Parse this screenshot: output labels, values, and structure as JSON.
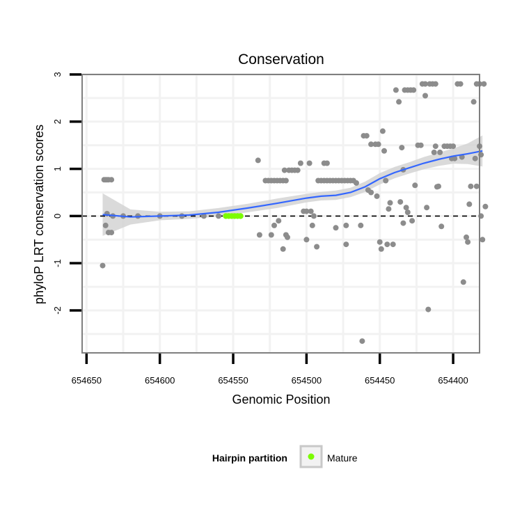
{
  "chart_data": {
    "type": "scatter",
    "title": "Conservation",
    "xlabel": "Genomic Position",
    "ylabel": "phyloP LRT conservation scores",
    "xlim": [
      654653,
      654382
    ],
    "ylim": [
      -2.9,
      3.0
    ],
    "x_reversed": true,
    "x_ticks": [
      654650,
      654600,
      654550,
      654500,
      654450,
      654400
    ],
    "x_tick_labels": [
      "654650",
      "654600",
      "654550",
      "654500",
      "654450",
      "654400"
    ],
    "y_ticks": [
      -2,
      -1,
      0,
      1,
      2,
      3
    ],
    "y_tick_labels": [
      "-2",
      "-1",
      "0",
      "1",
      "2",
      "3"
    ],
    "reference_line": {
      "y": 0,
      "style": "dashed"
    },
    "grid": true,
    "legend": {
      "title": "Hairpin partition",
      "placement": "bottom",
      "entries": [
        {
          "label": "Mature",
          "color": "#7cfc00"
        }
      ]
    },
    "colors": {
      "points": "#8c8c8c",
      "mature": "#7cfc00",
      "smooth_line": "#3366ff",
      "ribbon": "#d3d3d3",
      "grid": "#f2f2f2",
      "frame": "#7f7f7f"
    },
    "series": [
      {
        "name": "Conservation score",
        "points": [
          [
            654639,
            -1.05
          ],
          [
            654638,
            0.77
          ],
          [
            654637,
            0.77
          ],
          [
            654636,
            0.77
          ],
          [
            654635,
            0.77
          ],
          [
            654633,
            0.77
          ],
          [
            654637,
            -0.2
          ],
          [
            654635,
            -0.35
          ],
          [
            654633,
            -0.35
          ],
          [
            654636,
            0.05
          ],
          [
            654632,
            0.0
          ],
          [
            654625,
            0.0
          ],
          [
            654615,
            0.0
          ],
          [
            654600,
            0.0
          ],
          [
            654585,
            0.0
          ],
          [
            654570,
            0.0
          ],
          [
            654560,
            0.0
          ],
          [
            654533,
            1.18
          ],
          [
            654532,
            -0.4
          ],
          [
            654528,
            0.75
          ],
          [
            654526,
            0.75
          ],
          [
            654524,
            0.75
          ],
          [
            654522,
            0.75
          ],
          [
            654520,
            0.75
          ],
          [
            654518,
            0.75
          ],
          [
            654516,
            0.75
          ],
          [
            654514,
            0.75
          ],
          [
            654524,
            -0.4
          ],
          [
            654522,
            -0.2
          ],
          [
            654519,
            -0.1
          ],
          [
            654516,
            -0.7
          ],
          [
            654514,
            -0.4
          ],
          [
            654513,
            -0.45
          ],
          [
            654515,
            0.97
          ],
          [
            654512,
            0.97
          ],
          [
            654510,
            0.97
          ],
          [
            654508,
            0.97
          ],
          [
            654506,
            0.97
          ],
          [
            654504,
            1.12
          ],
          [
            654498,
            1.12
          ],
          [
            654502,
            0.1
          ],
          [
            654500,
            0.1
          ],
          [
            654497,
            0.1
          ],
          [
            654495,
            0.0
          ],
          [
            654500,
            -0.5
          ],
          [
            654496,
            -0.2
          ],
          [
            654493,
            -0.65
          ],
          [
            654492,
            0.75
          ],
          [
            654490,
            0.75
          ],
          [
            654488,
            0.75
          ],
          [
            654486,
            0.75
          ],
          [
            654484,
            0.75
          ],
          [
            654482,
            0.75
          ],
          [
            654480,
            0.75
          ],
          [
            654478,
            0.75
          ],
          [
            654476,
            0.75
          ],
          [
            654474,
            0.75
          ],
          [
            654472,
            0.75
          ],
          [
            654470,
            0.75
          ],
          [
            654468,
            0.75
          ],
          [
            654488,
            1.12
          ],
          [
            654486,
            1.12
          ],
          [
            654480,
            -0.25
          ],
          [
            654473,
            -0.2
          ],
          [
            654473,
            -0.6
          ],
          [
            654466,
            0.7
          ],
          [
            654463,
            -0.2
          ],
          [
            654462,
            -2.65
          ],
          [
            654461,
            1.7
          ],
          [
            654459,
            1.7
          ],
          [
            654458,
            0.55
          ],
          [
            654456,
            0.5
          ],
          [
            654456,
            1.52
          ],
          [
            654453,
            1.52
          ],
          [
            654451,
            1.52
          ],
          [
            654452,
            0.42
          ],
          [
            654450,
            -0.55
          ],
          [
            654449,
            -0.7
          ],
          [
            654448,
            1.8
          ],
          [
            654447,
            1.38
          ],
          [
            654446,
            0.75
          ],
          [
            654445,
            -0.6
          ],
          [
            654444,
            0.15
          ],
          [
            654443,
            0.28
          ],
          [
            654441,
            -0.6
          ],
          [
            654439,
            2.67
          ],
          [
            654437,
            2.42
          ],
          [
            654436,
            0.3
          ],
          [
            654435,
            1.45
          ],
          [
            654434,
            -0.15
          ],
          [
            654433,
            2.67
          ],
          [
            654431,
            2.67
          ],
          [
            654429,
            2.67
          ],
          [
            654427,
            2.67
          ],
          [
            654434,
            0.98
          ],
          [
            654432,
            0.18
          ],
          [
            654431,
            0.08
          ],
          [
            654428,
            -0.1
          ],
          [
            654426,
            0.65
          ],
          [
            654424,
            1.5
          ],
          [
            654422,
            1.5
          ],
          [
            654421,
            2.8
          ],
          [
            654419,
            2.8
          ],
          [
            654418,
            0.18
          ],
          [
            654416,
            2.8
          ],
          [
            654414,
            2.8
          ],
          [
            654412,
            2.8
          ],
          [
            654411,
            0.62
          ],
          [
            654419,
            2.55
          ],
          [
            654417,
            -1.98
          ],
          [
            654413,
            1.35
          ],
          [
            654412,
            1.48
          ],
          [
            654410,
            0.63
          ],
          [
            654409,
            1.35
          ],
          [
            654406,
            1.48
          ],
          [
            654404,
            1.48
          ],
          [
            654402,
            1.48
          ],
          [
            654401,
            1.22
          ],
          [
            654400,
            1.48
          ],
          [
            654399,
            1.22
          ],
          [
            654397,
            2.8
          ],
          [
            654395,
            2.8
          ],
          [
            654394,
            1.25
          ],
          [
            654393,
            -1.4
          ],
          [
            654391,
            -0.45
          ],
          [
            654390,
            -0.55
          ],
          [
            654389,
            0.25
          ],
          [
            654388,
            0.63
          ],
          [
            654386,
            2.42
          ],
          [
            654384,
            2.8
          ],
          [
            654382,
            2.8
          ],
          [
            654385,
            1.22
          ],
          [
            654384,
            0.63
          ],
          [
            654382,
            1.48
          ],
          [
            654381,
            1.3
          ],
          [
            654380,
            -0.5
          ],
          [
            654379,
            2.8
          ],
          [
            654378,
            0.2
          ],
          [
            654408,
            -0.22
          ],
          [
            654381,
            0.0
          ]
        ]
      },
      {
        "name": "Mature",
        "points": [
          [
            654555,
            0.0
          ],
          [
            654553,
            0.0
          ],
          [
            654551,
            0.0
          ],
          [
            654549,
            0.0
          ],
          [
            654547,
            0.0
          ],
          [
            654545,
            0.0
          ]
        ]
      }
    ],
    "smooth": {
      "x": [
        654639,
        654620,
        654600,
        654580,
        654560,
        654540,
        654520,
        654500,
        654490,
        654480,
        654470,
        654460,
        654450,
        654440,
        654430,
        654420,
        654410,
        654400,
        654390,
        654380
      ],
      "y": [
        0.03,
        -0.02,
        0.0,
        0.02,
        0.08,
        0.17,
        0.27,
        0.38,
        0.42,
        0.44,
        0.5,
        0.62,
        0.79,
        0.92,
        1.02,
        1.12,
        1.2,
        1.27,
        1.32,
        1.38
      ],
      "lower": [
        -0.42,
        -0.18,
        -0.09,
        -0.06,
        -0.01,
        0.08,
        0.17,
        0.29,
        0.33,
        0.34,
        0.4,
        0.51,
        0.67,
        0.8,
        0.9,
        0.99,
        1.06,
        1.11,
        1.1,
        1.05
      ],
      "upper": [
        0.48,
        0.14,
        0.09,
        0.1,
        0.17,
        0.26,
        0.37,
        0.47,
        0.51,
        0.54,
        0.6,
        0.73,
        0.91,
        1.04,
        1.14,
        1.25,
        1.34,
        1.43,
        1.54,
        1.71
      ]
    }
  }
}
